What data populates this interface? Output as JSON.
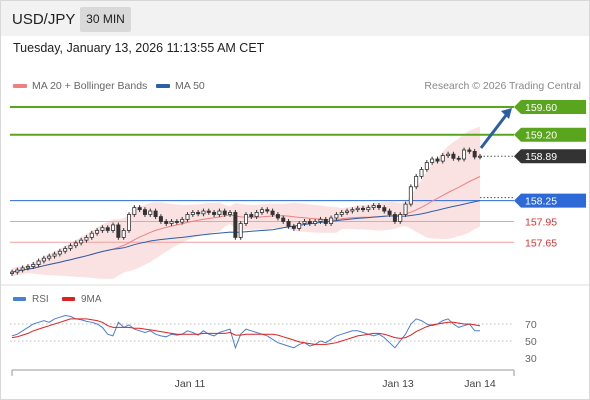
{
  "header": {
    "symbol": "USD/JPY",
    "timeframe": "30 MIN"
  },
  "datetime": "Tuesday, January 13, 2026 11:13:55 AM CET",
  "legend": {
    "ma20": {
      "label": "MA 20 + Bollinger Bands",
      "color": "#f08080"
    },
    "ma50": {
      "label": "MA 50",
      "color": "#2d5fa8"
    }
  },
  "source": "Research © 2026 Trading Central",
  "rsi_legend": {
    "rsi": {
      "label": "RSI",
      "color": "#4a7fd4"
    },
    "ma9": {
      "label": "9MA",
      "color": "#e02020"
    }
  },
  "colors": {
    "resistance": "#5aa51e",
    "pivot": "#2d6ad8",
    "support": "#f0a0a0",
    "last": "#333333",
    "arrow": "#2a5fa8",
    "band": "#f8d8d8",
    "candle": "#333333"
  },
  "chart_data": [
    {
      "type": "candlestick",
      "x_ticks": [
        "Jan 11",
        "Jan 13",
        "Jan 14"
      ],
      "ylim": [
        157.2,
        159.75
      ],
      "levels": [
        {
          "label": "159.60",
          "value": 159.6,
          "kind": "resistance"
        },
        {
          "label": "159.20",
          "value": 159.2,
          "kind": "resistance"
        },
        {
          "label": "158.89",
          "value": 158.89,
          "kind": "last"
        },
        {
          "label": "158.25",
          "value": 158.25,
          "kind": "pivot"
        },
        {
          "label": "157.95",
          "value": 157.95,
          "kind": "support"
        },
        {
          "label": "157.65",
          "value": 157.65,
          "kind": "support"
        }
      ],
      "close": [
        157.22,
        157.25,
        157.28,
        157.3,
        157.33,
        157.38,
        157.42,
        157.45,
        157.48,
        157.52,
        157.56,
        157.6,
        157.64,
        157.68,
        157.72,
        157.78,
        157.82,
        157.86,
        157.82,
        157.9,
        157.72,
        157.82,
        158.05,
        158.15,
        158.12,
        158.05,
        158.1,
        158.02,
        157.95,
        157.92,
        157.95,
        157.94,
        157.98,
        158.05,
        158.08,
        158.06,
        158.1,
        158.08,
        158.05,
        158.1,
        158.05,
        158.08,
        157.72,
        157.92,
        158.05,
        158.02,
        158.08,
        158.12,
        158.1,
        158.05,
        158.0,
        157.95,
        157.88,
        157.85,
        157.92,
        157.95,
        157.92,
        157.95,
        157.98,
        157.92,
        158.0,
        158.05,
        158.08,
        158.1,
        158.12,
        158.14,
        158.12,
        158.15,
        158.18,
        158.15,
        158.1,
        158.05,
        157.95,
        158.05,
        158.2,
        158.45,
        158.6,
        158.7,
        158.8,
        158.85,
        158.82,
        158.9,
        158.92,
        158.86,
        158.85,
        158.98,
        158.96,
        158.88,
        158.89
      ]
    },
    {
      "type": "line",
      "name": "RSI",
      "x_ticks": [
        "Jan 11",
        "Jan 13",
        "Jan 14"
      ],
      "y_ticks": [
        70,
        50,
        30
      ],
      "ylim": [
        20,
        88
      ],
      "series": [
        {
          "name": "RSI",
          "values": [
            56,
            58,
            62,
            66,
            70,
            72,
            74,
            72,
            76,
            78,
            80,
            79,
            76,
            75,
            73,
            72,
            70,
            66,
            58,
            56,
            72,
            66,
            69,
            64,
            62,
            60,
            62,
            58,
            56,
            55,
            58,
            57,
            58,
            62,
            60,
            57,
            62,
            58,
            56,
            60,
            62,
            64,
            42,
            58,
            64,
            62,
            60,
            58,
            56,
            52,
            48,
            46,
            44,
            42,
            46,
            48,
            44,
            46,
            50,
            48,
            52,
            56,
            58,
            60,
            62,
            62,
            60,
            58,
            56,
            58,
            54,
            48,
            42,
            50,
            58,
            70,
            76,
            74,
            70,
            68,
            70,
            74,
            76,
            70,
            66,
            68,
            70,
            62,
            62
          ]
        },
        {
          "name": "9MA",
          "values": [
            54,
            55,
            57,
            59,
            62,
            64,
            66,
            68,
            70,
            72,
            74,
            76,
            76,
            76,
            76,
            75,
            74,
            72,
            68,
            66,
            66,
            66,
            66,
            65,
            65,
            64,
            63,
            62,
            61,
            60,
            59,
            58,
            58,
            58,
            58,
            58,
            59,
            59,
            59,
            59,
            59,
            60,
            57,
            57,
            58,
            58,
            58,
            58,
            58,
            58,
            57,
            55,
            53,
            51,
            49,
            48,
            47,
            46,
            46,
            46,
            47,
            48,
            50,
            52,
            54,
            56,
            57,
            58,
            59,
            59,
            58,
            56,
            54,
            53,
            54,
            57,
            61,
            64,
            67,
            69,
            70,
            71,
            72,
            72,
            71,
            70,
            70,
            69,
            68
          ]
        }
      ]
    }
  ]
}
